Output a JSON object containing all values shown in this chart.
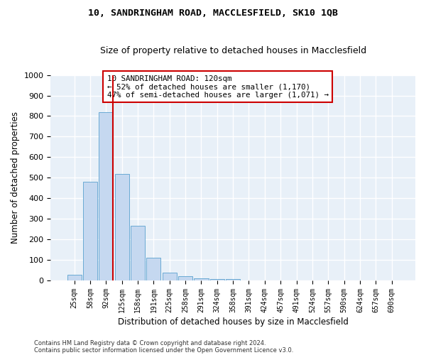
{
  "title1": "10, SANDRINGHAM ROAD, MACCLESFIELD, SK10 1QB",
  "title2": "Size of property relative to detached houses in Macclesfield",
  "xlabel": "Distribution of detached houses by size in Macclesfield",
  "ylabel": "Number of detached properties",
  "categories": [
    "25sqm",
    "58sqm",
    "92sqm",
    "125sqm",
    "158sqm",
    "191sqm",
    "225sqm",
    "258sqm",
    "291sqm",
    "324sqm",
    "358sqm",
    "391sqm",
    "424sqm",
    "457sqm",
    "491sqm",
    "524sqm",
    "557sqm",
    "590sqm",
    "624sqm",
    "657sqm",
    "690sqm"
  ],
  "values": [
    28,
    480,
    820,
    520,
    265,
    110,
    38,
    22,
    12,
    8,
    8,
    0,
    0,
    0,
    0,
    0,
    0,
    0,
    0,
    0,
    0
  ],
  "bar_color": "#c5d8f0",
  "bar_edge_color": "#6aaad4",
  "vline_color": "#cc0000",
  "annotation_text": "10 SANDRINGHAM ROAD: 120sqm\n← 52% of detached houses are smaller (1,170)\n47% of semi-detached houses are larger (1,071) →",
  "annotation_box_color": "#ffffff",
  "annotation_box_edge_color": "#cc0000",
  "ylim": [
    0,
    1000
  ],
  "yticks": [
    0,
    100,
    200,
    300,
    400,
    500,
    600,
    700,
    800,
    900,
    1000
  ],
  "background_color": "#e8f0f8",
  "grid_color": "#ffffff",
  "footer1": "Contains HM Land Registry data © Crown copyright and database right 2024.",
  "footer2": "Contains public sector information licensed under the Open Government Licence v3.0."
}
